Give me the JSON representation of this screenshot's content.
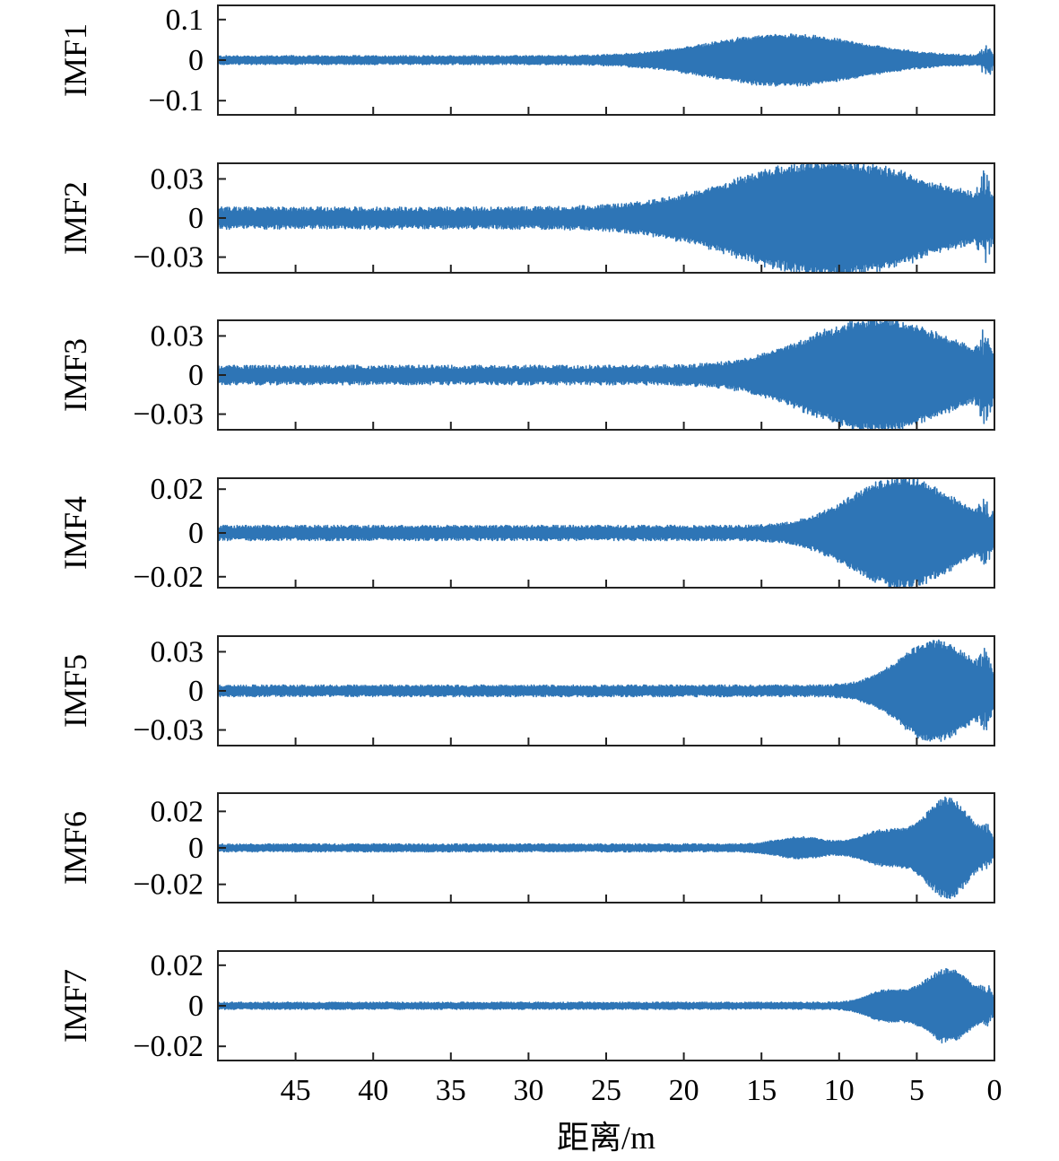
{
  "chart_data": {
    "type": "line",
    "layout": "stacked-subplots",
    "line_color": "#2E75B6",
    "x_axis": {
      "label": "距离/m",
      "ticks": [
        45,
        40,
        35,
        30,
        25,
        20,
        15,
        10,
        5,
        0
      ],
      "tick_labels": [
        "45",
        "40",
        "35",
        "30",
        "25",
        "20",
        "15",
        "10",
        "5",
        "0"
      ],
      "range": [
        50,
        0
      ],
      "reversed": true
    },
    "grid": false,
    "series": [
      {
        "name": "IMF1",
        "ylim": [
          -0.135,
          0.135
        ],
        "yticks": [
          0.1,
          0,
          -0.1
        ],
        "ytick_labels": [
          "0.1",
          "0",
          "−0.1"
        ],
        "noise_amplitude": 0.011,
        "envelope_peaks": [
          {
            "x": 13.5,
            "amplitude": 0.055,
            "width": 4.8
          }
        ],
        "edge_spike": {
          "x": 0.5,
          "amplitude": 0.035
        }
      },
      {
        "name": "IMF2",
        "ylim": [
          -0.042,
          0.042
        ],
        "yticks": [
          0.03,
          0,
          -0.03
        ],
        "ytick_labels": [
          "0.03",
          "0",
          "−0.03"
        ],
        "noise_amplitude": 0.0085,
        "envelope_peaks": [
          {
            "x": 10.5,
            "amplitude": 0.038,
            "width": 6.0
          }
        ],
        "edge_spike": {
          "x": 0.6,
          "amplitude": 0.025
        }
      },
      {
        "name": "IMF3",
        "ylim": [
          -0.042,
          0.042
        ],
        "yticks": [
          0.03,
          0,
          -0.03
        ],
        "ytick_labels": [
          "0.03",
          "0",
          "−0.03"
        ],
        "noise_amplitude": 0.0075,
        "envelope_peaks": [
          {
            "x": 7.5,
            "amplitude": 0.038,
            "width": 4.5
          }
        ],
        "edge_spike": {
          "x": 0.6,
          "amplitude": 0.025
        }
      },
      {
        "name": "IMF4",
        "ylim": [
          -0.025,
          0.025
        ],
        "yticks": [
          0.02,
          0,
          -0.02
        ],
        "ytick_labels": [
          "0.02",
          "0",
          "−0.02"
        ],
        "noise_amplitude": 0.0035,
        "envelope_peaks": [
          {
            "x": 6.0,
            "amplitude": 0.023,
            "width": 3.2
          }
        ],
        "edge_spike": {
          "x": 0.6,
          "amplitude": 0.009
        }
      },
      {
        "name": "IMF5",
        "ylim": [
          -0.042,
          0.042
        ],
        "yticks": [
          0.03,
          0,
          -0.03
        ],
        "ytick_labels": [
          "0.03",
          "0",
          "−0.03"
        ],
        "noise_amplitude": 0.0045,
        "envelope_peaks": [
          {
            "x": 3.8,
            "amplitude": 0.036,
            "width": 2.3
          }
        ],
        "edge_spike": {
          "x": 0.6,
          "amplitude": 0.018
        }
      },
      {
        "name": "IMF6",
        "ylim": [
          -0.03,
          0.03
        ],
        "yticks": [
          0.02,
          0,
          -0.02
        ],
        "ytick_labels": [
          "0.02",
          "0",
          "−0.02"
        ],
        "noise_amplitude": 0.0022,
        "envelope_peaks": [
          {
            "x": 3.0,
            "amplitude": 0.026,
            "width": 1.4
          },
          {
            "x": 7.0,
            "amplitude": 0.008,
            "width": 1.5
          },
          {
            "x": 12.5,
            "amplitude": 0.004,
            "width": 1.5
          }
        ],
        "edge_spike": {
          "x": 0.5,
          "amplitude": 0.008
        }
      },
      {
        "name": "IMF7",
        "ylim": [
          -0.027,
          0.027
        ],
        "yticks": [
          0.02,
          0,
          -0.02
        ],
        "ytick_labels": [
          "0.02",
          "0",
          "−0.02"
        ],
        "noise_amplitude": 0.0018,
        "envelope_peaks": [
          {
            "x": 3.0,
            "amplitude": 0.017,
            "width": 1.5
          },
          {
            "x": 7.0,
            "amplitude": 0.006,
            "width": 1.2
          }
        ],
        "edge_spike": {
          "x": 0.5,
          "amplitude": 0.006
        }
      }
    ]
  }
}
